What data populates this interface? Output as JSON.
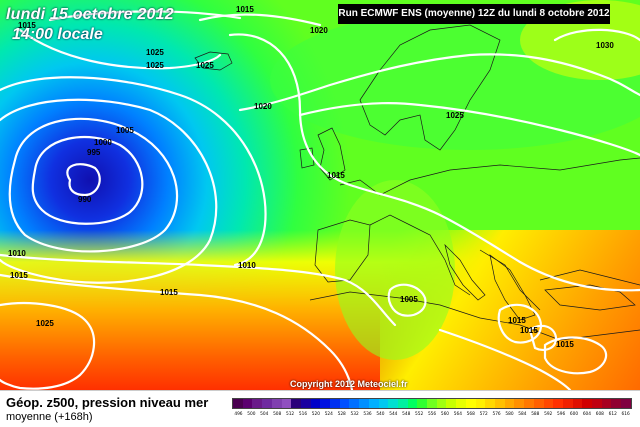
{
  "header": {
    "date_line": "lundi 15 octobre 2012",
    "time_line": "14:00 locale",
    "run_info": "Run ECMWF ENS (moyenne) 12Z du lundi 8 octobre 2012"
  },
  "copyright": "Copyright 2012 Meteociel.fr",
  "legend": {
    "title": "Géop. z500, pression niveau mer",
    "subtitle": "moyenne  (+168h)",
    "colors": [
      "#4a0050",
      "#5c0070",
      "#6a1a8a",
      "#6f2aa0",
      "#8040b0",
      "#9050c0",
      "#2a007a",
      "#1a00a0",
      "#0000c8",
      "#0010e0",
      "#0030f0",
      "#0050ff",
      "#0070ff",
      "#0090ff",
      "#00b0ff",
      "#00c8f0",
      "#00e0d0",
      "#00f0a0",
      "#00ff60",
      "#30ff30",
      "#70ff20",
      "#a0ff10",
      "#c8ff00",
      "#e8ff00",
      "#ffff00",
      "#fff000",
      "#ffd800",
      "#ffc000",
      "#ffa800",
      "#ff9000",
      "#ff7800",
      "#ff6000",
      "#ff4800",
      "#ff3000",
      "#f02000",
      "#e01000",
      "#d00000",
      "#c00010",
      "#a80020",
      "#900030",
      "#800040"
    ],
    "ticks": [
      "496",
      "500",
      "504",
      "508",
      "512",
      "516",
      "520",
      "524",
      "528",
      "532",
      "536",
      "540",
      "544",
      "548",
      "552",
      "556",
      "560",
      "564",
      "568",
      "572",
      "576",
      "580",
      "584",
      "588",
      "592",
      "596",
      "600",
      "604",
      "608",
      "612",
      "616"
    ]
  },
  "isobars": [
    {
      "label": "1015"
    },
    {
      "label": "1015"
    },
    {
      "label": "1020"
    },
    {
      "label": "1025"
    },
    {
      "label": "1025"
    },
    {
      "label": "1025"
    },
    {
      "label": "1030"
    },
    {
      "label": "1020"
    },
    {
      "label": "1005"
    },
    {
      "label": "1025"
    },
    {
      "label": "1000"
    },
    {
      "label": "995"
    },
    {
      "label": "990"
    },
    {
      "label": "1015"
    },
    {
      "label": "1010"
    },
    {
      "label": "1010"
    },
    {
      "label": "1015"
    },
    {
      "label": "1015"
    },
    {
      "label": "1005"
    },
    {
      "label": "1025"
    },
    {
      "label": "1015"
    },
    {
      "label": "1015"
    },
    {
      "label": "1015"
    }
  ]
}
